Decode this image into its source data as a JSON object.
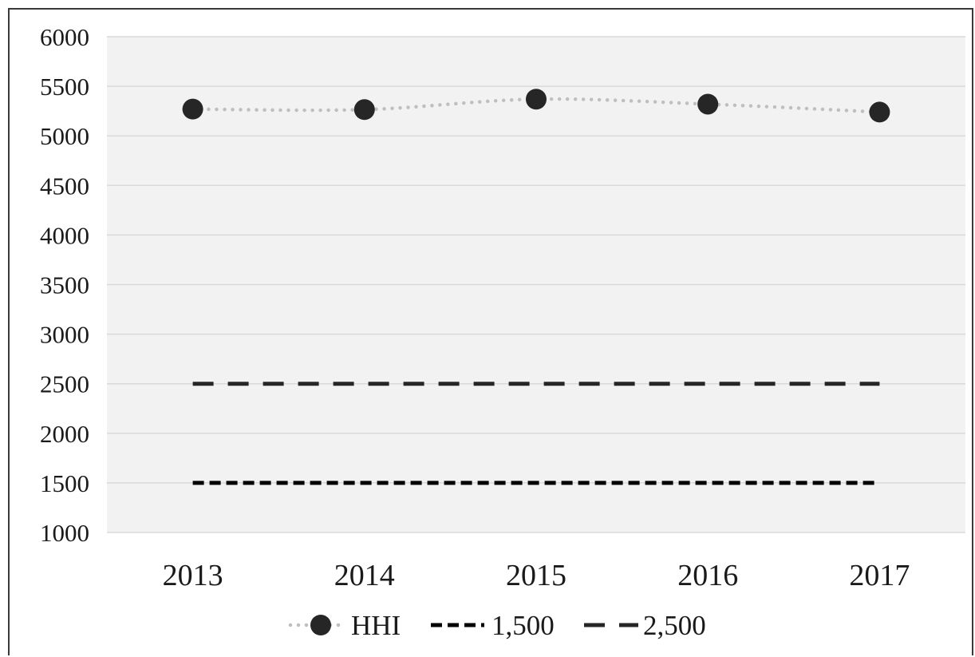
{
  "chart_data": {
    "type": "line",
    "categories": [
      "2013",
      "2014",
      "2015",
      "2016",
      "2017"
    ],
    "series": [
      {
        "name": "HHI",
        "values": [
          5270,
          5265,
          5370,
          5320,
          5240
        ],
        "color": "#bfbfbf",
        "marker": "circle",
        "marker_color": "#262626",
        "line_style": "dotted"
      },
      {
        "name": "1,500",
        "values": [
          1500,
          1500,
          1500,
          1500,
          1500
        ],
        "color": "#000000",
        "line_style": "dashed"
      },
      {
        "name": "2,500",
        "values": [
          2500,
          2500,
          2500,
          2500,
          2500
        ],
        "color": "#262626",
        "line_style": "long-dashed"
      }
    ],
    "y_ticks": [
      "1000",
      "1500",
      "2000",
      "2500",
      "3000",
      "3500",
      "4000",
      "4500",
      "5000",
      "5500",
      "6000"
    ],
    "ylim": [
      1000,
      6000
    ],
    "grid": true,
    "legend": "bottom",
    "plot_background": "#f2f2f2",
    "gridline_color": "#d9d9d9"
  }
}
